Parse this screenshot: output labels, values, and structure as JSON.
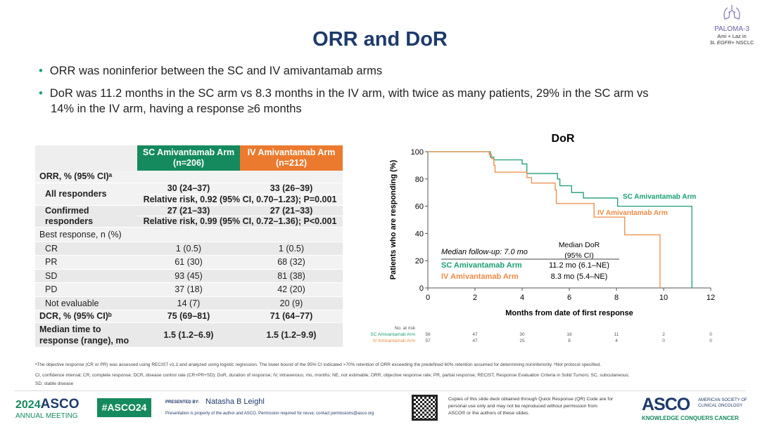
{
  "header": {
    "title": "ORR and DoR",
    "study": "PALOMA-3",
    "study_line1": "Ami + Laz in",
    "study_line2_prefix": "3L ",
    "study_line2_italic": "EGFR",
    "study_line2_suffix": "+ NSCLC"
  },
  "bullets": [
    "ORR was noninferior between the SC and IV amivantamab arms",
    "DoR was 11.2 months in the SC arm vs 8.3 months in the IV arm, with twice as many patients, 29% in the SC arm vs",
    "14% in the IV arm, having a response ≥6 months"
  ],
  "table": {
    "col_sc": "SC Amivantamab Arm (n=206)",
    "col_iv": "IV Amivantamab Arm (n=212)",
    "sc_color": "#148a5e",
    "iv_color": "#ec7a2e",
    "orr_label": "ORR, % (95% CI)ᵃ",
    "all_label": "All responders",
    "all_sc": "30 (24–37)",
    "all_iv": "33 (26–39)",
    "all_rr": "Relative risk, 0.92 (95% CI, 0.70–1.23); P=0.001",
    "conf_label": "Confirmed responders",
    "conf_sc": "27 (21–33)",
    "conf_iv": "27 (21–33)",
    "conf_rr": "Relative risk, 0.99 (95% CI, 0.72–1.36); P<0.001",
    "best_label": "Best response, n (%)",
    "best": [
      {
        "label": "CR",
        "sc": "1 (0.5)",
        "iv": "1 (0.5)"
      },
      {
        "label": "PR",
        "sc": "61 (30)",
        "iv": "68 (32)"
      },
      {
        "label": "SD",
        "sc": "93 (45)",
        "iv": "81 (38)"
      },
      {
        "label": "PD",
        "sc": "37 (18)",
        "iv": "42 (20)"
      },
      {
        "label": "Not evaluable",
        "sc": "14 (7)",
        "iv": "20 (9)"
      }
    ],
    "dcr_label": "DCR, % (95% CI)ᵇ",
    "dcr_sc": "75 (69–81)",
    "dcr_iv": "71 (64–77)",
    "mttr_label": "Median time to response (range), mo",
    "mttr_sc": "1.5 (1.2–6.9)",
    "mttr_iv": "1.5 (1.2–9.9)"
  },
  "chart_data": {
    "type": "line",
    "title": "DoR",
    "xlabel": "Months from date of first response",
    "ylabel": "Patients who are responding (%)",
    "xlim": [
      0,
      12
    ],
    "ylim": [
      0,
      100
    ],
    "xticks": [
      0,
      2,
      4,
      6,
      8,
      10,
      12
    ],
    "yticks": [
      0,
      20,
      40,
      60,
      80,
      100
    ],
    "series": [
      {
        "name": "SC Amivantamab Arm",
        "color": "#1a9e74",
        "steps": [
          [
            0,
            100
          ],
          [
            2.6,
            100
          ],
          [
            2.65,
            96
          ],
          [
            2.8,
            94
          ],
          [
            4.0,
            94
          ],
          [
            4.0,
            91
          ],
          [
            4.2,
            91
          ],
          [
            4.2,
            84
          ],
          [
            5.5,
            84
          ],
          [
            5.5,
            80
          ],
          [
            5.6,
            80
          ],
          [
            5.6,
            75
          ],
          [
            6.1,
            75
          ],
          [
            6.1,
            70
          ],
          [
            6.6,
            70
          ],
          [
            6.6,
            66
          ],
          [
            8.05,
            66
          ],
          [
            8.05,
            60
          ],
          [
            11.2,
            60
          ],
          [
            11.2,
            0
          ]
        ]
      },
      {
        "name": "IV Amivantamab Arm",
        "color": "#ef8a45",
        "steps": [
          [
            0,
            100
          ],
          [
            2.55,
            100
          ],
          [
            2.6,
            98
          ],
          [
            2.7,
            95
          ],
          [
            2.8,
            90
          ],
          [
            2.85,
            85
          ],
          [
            4.2,
            85
          ],
          [
            4.2,
            81
          ],
          [
            4.4,
            81
          ],
          [
            4.4,
            77
          ],
          [
            5.4,
            77
          ],
          [
            5.4,
            72
          ],
          [
            5.45,
            72
          ],
          [
            5.45,
            62
          ],
          [
            7.05,
            62
          ],
          [
            7.05,
            52
          ],
          [
            8.35,
            52
          ],
          [
            8.35,
            39
          ],
          [
            9.85,
            39
          ],
          [
            9.85,
            0
          ]
        ]
      }
    ],
    "annotation": {
      "followup": "Median follow-up: 7.0 mo",
      "median_header_1": "Median DoR",
      "median_header_2": "(95% CI)",
      "sc_median": "11.2 mo (6.1–NE)",
      "iv_median": "8.3 mo (5.4–NE)"
    },
    "risk_table": {
      "label": "No. at risk",
      "sc": [
        56,
        47,
        30,
        16,
        11,
        2,
        0
      ],
      "iv": [
        57,
        47,
        25,
        8,
        4,
        0,
        0
      ]
    }
  },
  "footnotes": [
    "ᵃThe objective response (CR or PR) was assessed using RECIST v1.1 and analyzed using logistic regression. The lower bound of the 95% CI indicated >70% retention of ORR exceeding the predefined 60% retention assumed for determining noninferiority. ᵇNot protocol specified.",
    "CI, confidence interval; CR, complete response; DCR, disease control rate (CR+PR+SD); DoR, duration of response; IV, intravenous; mo, months; NE, not estimable; ORR, objective response rate; PR, partial response; RECIST, Response Evaluation Criteria in Solid Tumors; SC, subcutaneous;",
    "SD, stable disease"
  ],
  "footer": {
    "year": "2024",
    "asco": "ASCO",
    "annual": "ANNUAL MEETING",
    "hashtag": "#ASCO24",
    "presented_by": "PRESENTED BY:",
    "presenter": "Natasha B Leighl",
    "property": "Presentation is property of the author and ASCO. Permission required for reuse; contact permissions@asco.org",
    "qr_text": "Copies of this slide deck obtained through Quick Response (QR) Code are for personal use only and may not be reproduced without permission from ASCO® or the authors of these slides.",
    "asco_logo": "ASCO",
    "society1": "AMERICAN SOCIETY OF",
    "society2": "CLINICAL ONCOLOGY",
    "tagline": "KNOWLEDGE CONQUERS CANCER"
  }
}
